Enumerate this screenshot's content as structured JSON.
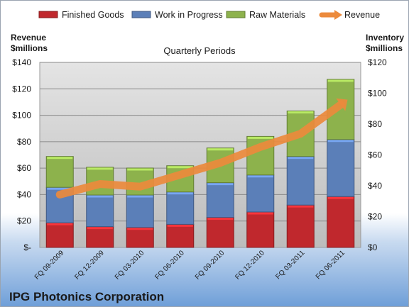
{
  "chart_data": {
    "type": "bar",
    "categories": [
      "FQ 09-2009",
      "FQ 12-2009",
      "FQ 03-2010",
      "FQ 06-2010",
      "FQ 09-2010",
      "FQ 12-2010",
      "FQ 03-2011",
      "FQ 06-2011"
    ],
    "series": [
      {
        "name": "Finished Goods",
        "color": "#c0282d",
        "values": [
          16,
          13.5,
          13,
          15,
          19.5,
          23,
          27.5,
          33
        ]
      },
      {
        "name": "Work in Progress",
        "color": "#5b7fb8",
        "values": [
          23,
          20.5,
          21,
          21,
          22.5,
          24,
          31.5,
          37
        ]
      },
      {
        "name": "Raw Materials",
        "color": "#8db24c",
        "values": [
          20,
          18,
          17.5,
          17,
          22.5,
          25,
          29.5,
          39
        ]
      }
    ],
    "line": {
      "name": "Revenue",
      "axis": "left",
      "color": "#ec8a3c",
      "values": [
        40,
        48,
        46,
        55,
        64,
        76,
        86,
        108
      ]
    },
    "title": "Quarterly Periods",
    "left_axis": {
      "title_line1": "Revenue",
      "title_line2": "$millions",
      "range": [
        0,
        140
      ],
      "ticks": [
        "$-",
        "$20",
        "$40",
        "$60",
        "$80",
        "$100",
        "$120",
        "$140"
      ]
    },
    "right_axis": {
      "title_line1": "Inventory",
      "title_line2": "$millions",
      "range": [
        0,
        120
      ],
      "ticks": [
        "$0",
        "$20",
        "$40",
        "$60",
        "$80",
        "$100",
        "$120"
      ]
    },
    "legend_position": "top",
    "grid": true
  },
  "footer": {
    "company": "IPG Photonics Corporation"
  }
}
